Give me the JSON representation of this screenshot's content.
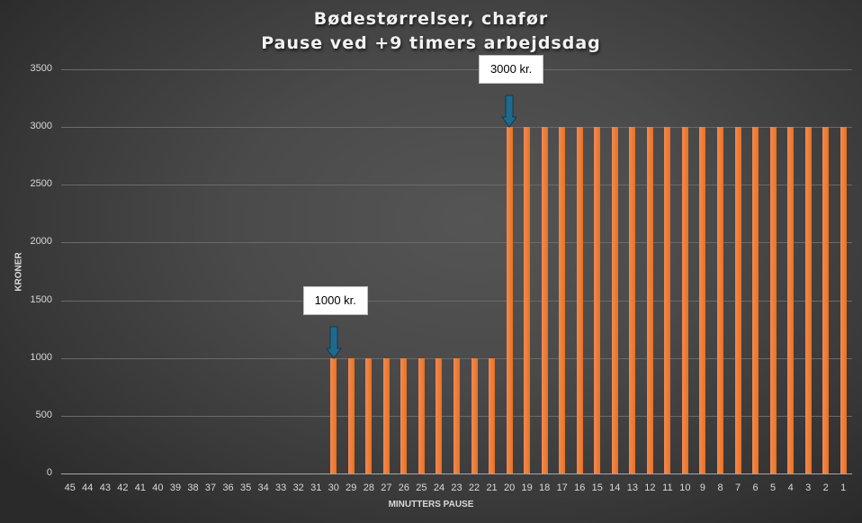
{
  "chart_data": {
    "type": "bar",
    "title": "Bødestørrelser, chafør",
    "subtitle": "Pause ved +9 timers arbejdsdag",
    "xlabel": "MINUTTERS PAUSE",
    "ylabel": "KRONER",
    "ylim": [
      0,
      3500
    ],
    "yticks": [
      0,
      500,
      1000,
      1500,
      2000,
      2500,
      3000,
      3500
    ],
    "grid": true,
    "legend": null,
    "categories": [
      "45",
      "44",
      "43",
      "42",
      "41",
      "40",
      "39",
      "38",
      "37",
      "36",
      "35",
      "34",
      "33",
      "32",
      "31",
      "30",
      "29",
      "28",
      "27",
      "26",
      "25",
      "24",
      "23",
      "22",
      "21",
      "20",
      "19",
      "18",
      "17",
      "16",
      "15",
      "14",
      "13",
      "12",
      "11",
      "10",
      "9",
      "8",
      "7",
      "6",
      "5",
      "4",
      "3",
      "2",
      "1"
    ],
    "values": [
      0,
      0,
      0,
      0,
      0,
      0,
      0,
      0,
      0,
      0,
      0,
      0,
      0,
      0,
      0,
      1000,
      1000,
      1000,
      1000,
      1000,
      1000,
      1000,
      1000,
      1000,
      1000,
      3000,
      3000,
      3000,
      3000,
      3000,
      3000,
      3000,
      3000,
      3000,
      3000,
      3000,
      3000,
      3000,
      3000,
      3000,
      3000,
      3000,
      3000,
      3000,
      3000
    ],
    "annotations": [
      {
        "text": "1000 kr.",
        "category": "30",
        "value": 1000
      },
      {
        "text": "3000 kr.",
        "category": "20",
        "value": 3000
      }
    ],
    "colors": {
      "bar": "#ED7D31",
      "arrow": "#1F6A8C",
      "background": "#404040"
    }
  },
  "title_line1": "Bødestørrelser, chafør",
  "title_line2": "Pause ved +9 timers arbejdsdag"
}
